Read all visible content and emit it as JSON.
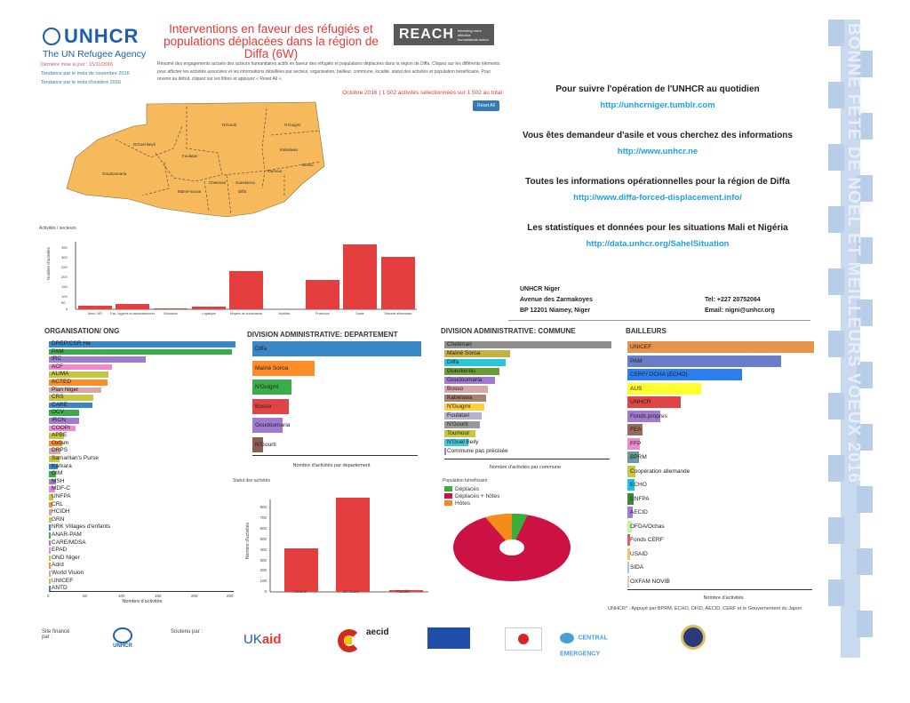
{
  "header": {
    "logo_name": "UNHCR",
    "logo_sub": "The UN Refugee Agency",
    "title": "Interventions en faveur des réfugiés et populations déplacées dans la région de Diffa (6W)",
    "reach_logo": "REACH",
    "reach_sub": "Informing more effective humanitarian action",
    "side_links": [
      "Dernière mise à jour : 15/11/2016",
      "Tendance par le mois de novembre 2016",
      "Tendance par le mois d'octobre 2016"
    ],
    "description": "Résumé des engagements actuels des acteurs humanitaires actifs en faveur des réfugiés et populations déplacées dans la région de Diffa. Cliquez sur les différents éléments pour afficher les activités associées et les informations détaillées par secteur, organisation, bailleur, commune, localité, statut des activités et population bénéficiaire. Pour revenir au début, cliquez sur les filtres et appuyez « Reset All ».",
    "date_line": "Octobre 2016 | 1 502 activités sélectionnées sur 1 502 au total",
    "reset_label": "Reset All"
  },
  "map": {
    "regions": [
      "N'Guigmi",
      "Bosso",
      "Kabelawa",
      "Toumour",
      "N'Gourti",
      "Foulatari",
      "Gueskerou",
      "Chetimari",
      "Maïné-Soroa",
      "Goudoumaria",
      "N'Guelbeyli",
      "Diffa"
    ],
    "fill_color": "#f6b95c"
  },
  "right_info": {
    "items": [
      {
        "question": "Pour suivre l'opération de l'UNHCR au quotidien",
        "url": "http://unhcrniger.tumblr.com"
      },
      {
        "question": "Vous êtes demandeur d'asile et vous cherchez des informations",
        "url": "http://www.unhcr.ne"
      },
      {
        "question": "Toutes les informations opérationnelles pour la région de Diffa",
        "url": "http://www.diffa-forced-displacement.info/"
      },
      {
        "question": "Les statistiques et données pour les situations Mali et Nigéria",
        "url": "http://data.unhcr.org/SahelSituation"
      }
    ],
    "contact": {
      "org": "UNHCR Niger",
      "address1": "Avenue des Zarmakoyes",
      "address2": "BP 12201 Niamey, Niger",
      "tel": "Tel: +227 20752064",
      "email": "Email: nigni@unhcr.org"
    }
  },
  "footer": {
    "financed_by_label": "Site financé par :",
    "supported_by_label": "Soutenu par :",
    "donor_note": "UNHCR* : Appuyé par BPRM, ECHO, DFID, AECID, CERF et le Gouvernement du Japon",
    "logos": [
      "UNHCR",
      "UKaid",
      "aecid",
      "European Union Humanitarian Aid",
      "From the People of Japan",
      "Central Emergency Response Fund",
      "U.S. Department of State"
    ]
  },
  "banner": {
    "text": "BONNE FÊTE DE NOËL ET MEILLEURS VOEUX 2016"
  },
  "chart_data": [
    {
      "type": "bar",
      "title": "Activités / secteurs",
      "categories": [
        "Abris / NFI",
        "Eau, hygiène et assainissement",
        "Education",
        "Logistique",
        "Moyens de subsistance",
        "Nutrition",
        "Protection",
        "Santé",
        "Sécurité alimentaire"
      ],
      "values": [
        20,
        25,
        5,
        10,
        200,
        0,
        150,
        350,
        285
      ],
      "ylabel": "Nombre d'activités",
      "ylim": [
        0,
        360
      ],
      "color": "#e53e3e"
    },
    {
      "type": "bar",
      "orientation": "horizontal",
      "title": "ORGANISATION/ ONG",
      "categories": [
        "DREP/CSR Ha",
        "PAM",
        "IRC",
        "ACF",
        "ALIMA",
        "ACTED",
        "Plan Niger",
        "CRS",
        "CARE",
        "OCV",
        "IRCN",
        "COOPI",
        "APBE",
        "Oxfam",
        "DRPS",
        "Samaritan's Purse",
        "Karkara",
        "OIM",
        "MSH",
        "MDF-C",
        "UNFPA",
        "CRL",
        "HCIDH",
        "GRN",
        "NRK Villages d'enfants",
        "ANAR-PAM",
        "CARE/MDSA",
        "EPAD",
        "OND Niger",
        "Adrd",
        "World Vision",
        "UNICEF",
        "ANTD"
      ],
      "values": [
        250,
        245,
        130,
        85,
        80,
        78,
        70,
        60,
        58,
        40,
        40,
        36,
        20,
        18,
        16,
        14,
        12,
        10,
        9,
        8,
        6,
        5,
        4,
        3,
        2,
        2,
        2,
        1,
        1,
        1,
        1,
        1,
        1
      ],
      "xlabel": "Nombre d'activités",
      "xticks": [
        0,
        50,
        100,
        150,
        200,
        250
      ]
    },
    {
      "type": "bar",
      "orientation": "horizontal",
      "title": "DIVISION ADMINISTRATIVE: DEPARTEMENT",
      "categories": [
        "Diffa",
        "Maïné Soroa",
        "N'Guigmi",
        "Bosso",
        "Goudoumaria",
        "N'Gourti"
      ],
      "values": [
        650,
        240,
        150,
        140,
        115,
        40
      ],
      "colors": [
        "#3a87c8",
        "#ff8c2a",
        "#3aad4a",
        "#e04444",
        "#a07bd0",
        "#8c5e50"
      ],
      "xlabel": "Nombre d'activités par departement",
      "xticks": [
        0,
        100,
        200,
        300,
        400,
        500,
        600
      ]
    },
    {
      "type": "bar",
      "orientation": "horizontal",
      "title": "DIVISION ADMINISTRATIVE: COMMUNE",
      "categories": [
        "Chetimari",
        "Maïné Soroa",
        "Diffa",
        "Gueskerou",
        "Goudoumaria",
        "Bosso",
        "Kabelawa",
        "N'Guigmi",
        "Foulatari",
        "N'Gourti",
        "Toumour",
        "N'Guel Beily",
        "Commune pas précisée"
      ],
      "values": [
        380,
        150,
        140,
        125,
        115,
        100,
        95,
        90,
        85,
        80,
        70,
        55,
        5
      ],
      "colors": [
        "#8d8d8d",
        "#c6b042",
        "#2cc5d8",
        "#6a9a38",
        "#a07bd0",
        "#d8a8a8",
        "#a88070",
        "#ffcf40",
        "#b8b0d0",
        "#999999",
        "#c6c640",
        "#40c8d8",
        "#a07bd0"
      ],
      "xlabel": "Nombre d'activités par commune",
      "xticks": [
        0,
        100,
        200,
        300
      ]
    },
    {
      "type": "bar",
      "orientation": "horizontal",
      "title": "BAILLEURS",
      "categories": [
        "UNICEF",
        "PAM",
        "CERF/ OCHA (ECHO)",
        "AUS",
        "UNHCR",
        "Fonds propres",
        "FEA",
        "FFP",
        "BPRM",
        "Coopération allemande",
        "ECHO",
        "UNFPA",
        "AECID",
        "OFDA/Ochas",
        "Fonds CERF",
        "USAID",
        "SIDA",
        "OXFAM NOVIB"
      ],
      "values": [
        365,
        300,
        225,
        145,
        105,
        65,
        30,
        25,
        22,
        15,
        14,
        12,
        10,
        8,
        6,
        5,
        4,
        3
      ],
      "colors": [
        "#e6944a",
        "#6a7ec8",
        "#2a7ef0",
        "#ffff30",
        "#e04444",
        "#a07bd0",
        "#9c6a5a",
        "#f08ad0",
        "#6a9a9a",
        "#c6c640",
        "#20c0e0",
        "#3a8a3a",
        "#a07bd0",
        "#c8f0a0",
        "#e06060",
        "#e8c860",
        "#a8c8e8",
        "#f0c8a0"
      ],
      "xlabel": "Nombre d'activités",
      "xticks": [
        0,
        100,
        200,
        300,
        400
      ]
    },
    {
      "type": "bar",
      "title": "Statut des activités",
      "categories": [
        "Achevé",
        "En cours",
        "Planifié"
      ],
      "values": [
        410,
        900,
        10
      ],
      "ylabel": "Nombre d'activités",
      "ylim": [
        0,
        900
      ],
      "yticks": [
        0,
        100,
        200,
        300,
        400,
        500,
        600,
        700,
        800
      ],
      "color": "#e53e3e"
    },
    {
      "type": "pie",
      "title": "Population bénéficiaire",
      "labels": [
        "Déplacés",
        "Déplacés + hôtes",
        "Hôtes"
      ],
      "values": [
        4,
        88,
        8
      ],
      "colors": [
        "#3aad3a",
        "#cc1144",
        "#f58c1a"
      ],
      "donut": true
    }
  ]
}
